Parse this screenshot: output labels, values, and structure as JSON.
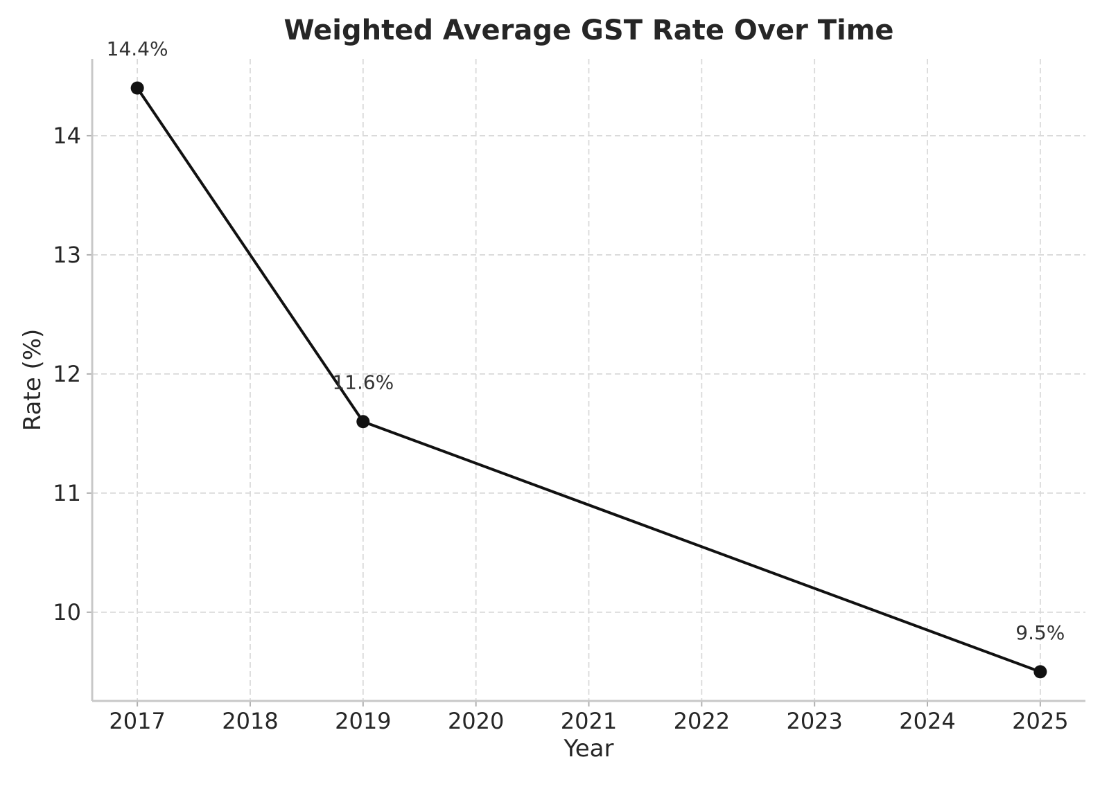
{
  "figure": {
    "background": "#ffffff"
  },
  "chart_data": {
    "type": "line",
    "title": "Weighted Average GST Rate Over Time",
    "xlabel": "Year",
    "ylabel": "Rate (%)",
    "x_ticks": {
      "values": [
        2017,
        2018,
        2019,
        2020,
        2021,
        2022,
        2023,
        2024,
        2025
      ],
      "labels": [
        "2017",
        "2018",
        "2019",
        "2020",
        "2021",
        "2022",
        "2023",
        "2024",
        "2025"
      ]
    },
    "y_ticks": {
      "values": [
        10,
        11,
        12,
        13,
        14
      ],
      "labels": [
        "10",
        "11",
        "12",
        "13",
        "14"
      ]
    },
    "xlim": [
      2016.6,
      2025.4
    ],
    "ylim": [
      9.255,
      14.645
    ],
    "grid": {
      "visible": true,
      "style": "dashed"
    },
    "legend": false,
    "series": [
      {
        "x": [
          2017,
          2019,
          2025
        ],
        "y": [
          14.4,
          11.6,
          9.5
        ],
        "data_labels": [
          "14.4%",
          "11.6%",
          "9.5%"
        ],
        "marker": "circle"
      }
    ],
    "colors": {
      "line": "#111111",
      "marker": "#111111",
      "text": "#262626",
      "annotation_text": "#333333",
      "grid": "#d9d9d9",
      "spine": "#c8c8c8",
      "tick_mark": "#b0b0b0",
      "background": "#ffffff"
    }
  }
}
